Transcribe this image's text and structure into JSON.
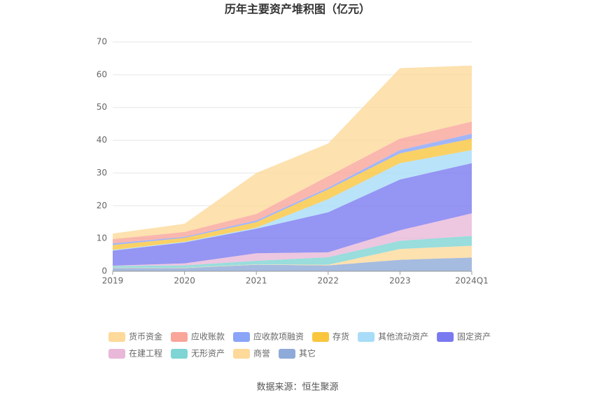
{
  "chart_data": {
    "type": "stacked-area",
    "title": "历年主要资产堆积图（亿元）",
    "categories": [
      "2019",
      "2020",
      "2021",
      "2022",
      "2023",
      "2024Q1"
    ],
    "ylim": [
      0,
      70
    ],
    "yticks": [
      0,
      10,
      20,
      30,
      40,
      50,
      60,
      70
    ],
    "grid": true,
    "series": [
      {
        "name": "其它",
        "color": "#8eaad8",
        "values": [
          1.0,
          1.0,
          2.0,
          1.8,
          3.5,
          4.2
        ]
      },
      {
        "name": "商誉",
        "color": "#fdd99a",
        "values": [
          0.1,
          0.1,
          0.1,
          0.2,
          3.3,
          3.6
        ]
      },
      {
        "name": "无形资产",
        "color": "#7fd4d4",
        "values": [
          0.5,
          0.7,
          1.1,
          2.3,
          2.5,
          3.0
        ]
      },
      {
        "name": "在建工程",
        "color": "#e9b8d8",
        "values": [
          0.1,
          0.6,
          2.3,
          1.5,
          3.2,
          6.9
        ]
      },
      {
        "name": "固定资产",
        "color": "#7a7af0",
        "values": [
          4.6,
          6.4,
          7.5,
          12.2,
          15.5,
          15.3
        ]
      },
      {
        "name": "其他流动资产",
        "color": "#a8dcf7",
        "values": [
          0.2,
          0.2,
          0.3,
          4.0,
          5.0,
          4.0
        ]
      },
      {
        "name": "存货",
        "color": "#f9c63e",
        "values": [
          1.5,
          1.2,
          1.7,
          3.0,
          3.0,
          3.5
        ]
      },
      {
        "name": "应收款项融资",
        "color": "#8aa4f8",
        "values": [
          0.5,
          0.3,
          0.5,
          0.5,
          1.0,
          1.5
        ]
      },
      {
        "name": "应收账款",
        "color": "#f9a59a",
        "values": [
          1.3,
          1.5,
          2.0,
          3.5,
          3.5,
          3.7
        ]
      },
      {
        "name": "货币资金",
        "color": "#fdd99a",
        "values": [
          1.7,
          2.5,
          12.5,
          10.0,
          21.5,
          17.1
        ]
      }
    ],
    "legend_order": [
      9,
      8,
      7,
      6,
      5,
      4,
      3,
      2,
      1,
      0
    ],
    "source": "数据来源：恒生聚源"
  }
}
